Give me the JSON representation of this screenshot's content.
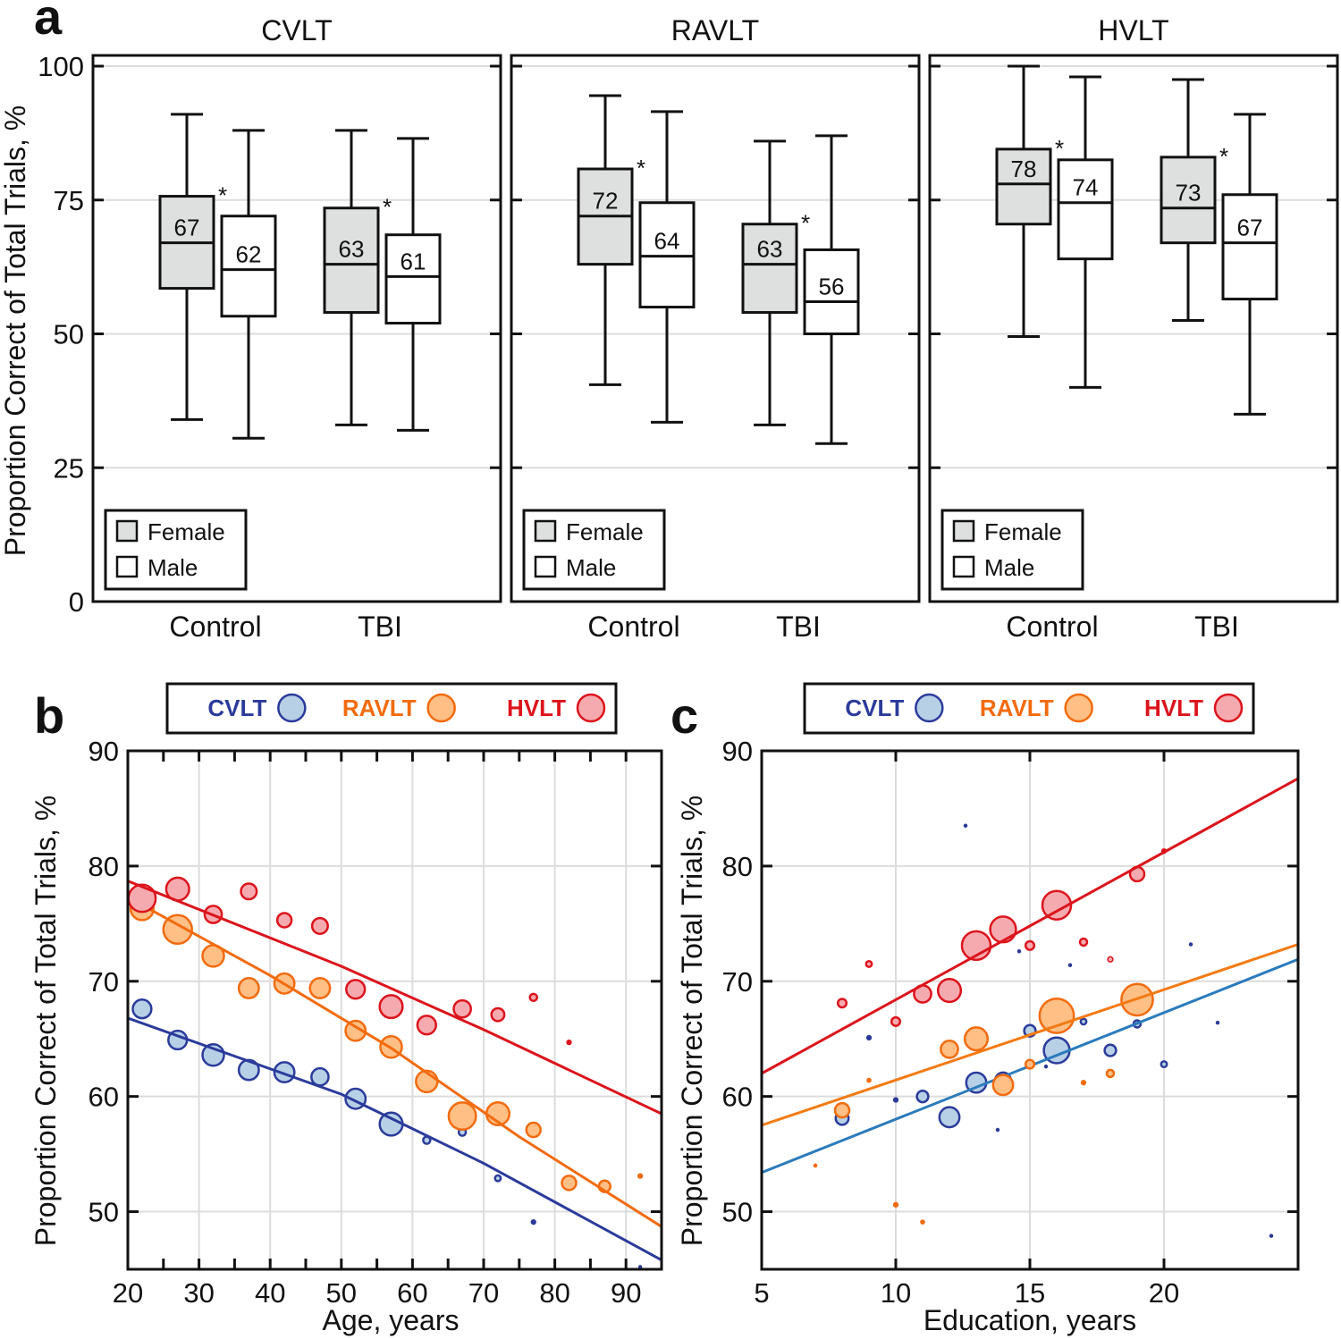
{
  "panel_letters": [
    "a",
    "b",
    "c"
  ],
  "colors": {
    "CVLT": {
      "edge": "#2b3b9b",
      "fill": "#b7d0e6",
      "line_b": "#2b3b9b",
      "line_c": "#2b7bbb"
    },
    "RAVLT": {
      "edge": "#f26b0f",
      "fill": "#ffbf85",
      "line_b": "#f26b0f",
      "line_c": "#f47a12"
    },
    "HVLT": {
      "edge": "#dc141c",
      "fill": "#f5aab0",
      "line_b": "#dc141c",
      "line_c": "#dc141c"
    },
    "female_fill": "#dedfdf",
    "grid": "#dcdcdc"
  },
  "chart_data": [
    {
      "type": "box",
      "panel": "a",
      "ylabel": "Proportion Correct of Total Trials, %",
      "ylim": [
        0,
        102
      ],
      "yticks": [
        "0",
        "25",
        "50",
        "75",
        "100"
      ],
      "groups": [
        "Control",
        "TBI"
      ],
      "legend": [
        "Female",
        "Male"
      ],
      "legend_placement": "bottom-left",
      "grid": true,
      "subplots": [
        {
          "title": "CVLT",
          "boxes": [
            {
              "group": "Control",
              "sex": "Female",
              "min": 34,
              "q1": 58.5,
              "median": 67,
              "q3": 75.7,
              "max": 91,
              "label": "67",
              "sig": "*"
            },
            {
              "group": "Control",
              "sex": "Male",
              "min": 30.5,
              "q1": 53.3,
              "median": 62,
              "q3": 72,
              "max": 88,
              "label": "62",
              "sig": ""
            },
            {
              "group": "TBI",
              "sex": "Female",
              "min": 33,
              "q1": 54,
              "median": 63,
              "q3": 73.5,
              "max": 88,
              "label": "63",
              "sig": "*"
            },
            {
              "group": "TBI",
              "sex": "Male",
              "min": 32,
              "q1": 52,
              "median": 60.7,
              "q3": 68.5,
              "max": 86.5,
              "label": "61",
              "sig": ""
            }
          ]
        },
        {
          "title": "RAVLT",
          "boxes": [
            {
              "group": "Control",
              "sex": "Female",
              "min": 40.5,
              "q1": 63,
              "median": 72,
              "q3": 80.8,
              "max": 94.5,
              "label": "72",
              "sig": "*"
            },
            {
              "group": "Control",
              "sex": "Male",
              "min": 33.5,
              "q1": 55,
              "median": 64.5,
              "q3": 74.5,
              "max": 91.5,
              "label": "64",
              "sig": ""
            },
            {
              "group": "TBI",
              "sex": "Female",
              "min": 33,
              "q1": 54,
              "median": 63,
              "q3": 70.5,
              "max": 86,
              "label": "63",
              "sig": "*"
            },
            {
              "group": "TBI",
              "sex": "Male",
              "min": 29.5,
              "q1": 50,
              "median": 56,
              "q3": 65.7,
              "max": 87,
              "label": "56",
              "sig": ""
            }
          ]
        },
        {
          "title": "HVLT",
          "boxes": [
            {
              "group": "Control",
              "sex": "Female",
              "min": 49.5,
              "q1": 70.5,
              "median": 78,
              "q3": 84.5,
              "max": 100,
              "label": "78",
              "sig": "*"
            },
            {
              "group": "Control",
              "sex": "Male",
              "min": 40,
              "q1": 64,
              "median": 74.5,
              "q3": 82.5,
              "max": 98,
              "label": "74",
              "sig": ""
            },
            {
              "group": "TBI",
              "sex": "Female",
              "min": 52.5,
              "q1": 67,
              "median": 73.5,
              "q3": 83,
              "max": 97.5,
              "label": "73",
              "sig": "*"
            },
            {
              "group": "TBI",
              "sex": "Male",
              "min": 35,
              "q1": 56.5,
              "median": 67,
              "q3": 76,
              "max": 91,
              "label": "67",
              "sig": ""
            }
          ]
        }
      ]
    },
    {
      "type": "scatter",
      "panel": "b",
      "xlabel": "Age, years",
      "ylabel": "Proportion Correct of Total Trials, %",
      "xlim": [
        20,
        95
      ],
      "ylim": [
        45,
        90
      ],
      "xticks": [
        20,
        30,
        40,
        50,
        60,
        70,
        80,
        90
      ],
      "yticks": [
        50,
        60,
        70,
        80,
        90
      ],
      "grid": true,
      "legend_placement": "top",
      "series": [
        {
          "name": "CVLT",
          "points": [
            [
              22,
              67.6,
              6.5
            ],
            [
              27,
              64.9,
              6.5
            ],
            [
              32,
              63.6,
              7.5
            ],
            [
              37,
              62.3,
              7
            ],
            [
              42,
              62.1,
              7
            ],
            [
              47,
              61.7,
              6
            ],
            [
              52,
              59.8,
              7
            ],
            [
              57,
              57.6,
              8
            ],
            [
              62,
              56.2,
              2.5
            ],
            [
              67,
              56.9,
              2.5
            ],
            [
              72,
              52.9,
              2
            ],
            [
              77,
              49.1,
              1.5
            ],
            [
              92,
              45.2,
              0.7
            ]
          ],
          "fit": [
            [
              20,
              66.8
            ],
            [
              50,
              60.2
            ],
            [
              70,
              54.2
            ],
            [
              95,
              45.8
            ]
          ]
        },
        {
          "name": "RAVLT",
          "points": [
            [
              22,
              76.3,
              8
            ],
            [
              27,
              74.5,
              10
            ],
            [
              32,
              72.2,
              7.5
            ],
            [
              37,
              69.4,
              7
            ],
            [
              42,
              69.8,
              7
            ],
            [
              47,
              69.4,
              7
            ],
            [
              52,
              65.7,
              7
            ],
            [
              57,
              64.3,
              7.5
            ],
            [
              62,
              61.3,
              7.5
            ],
            [
              67,
              58.3,
              9.5
            ],
            [
              72,
              58.5,
              8
            ],
            [
              77,
              57.1,
              5
            ],
            [
              82,
              52.5,
              5
            ],
            [
              87,
              52.2,
              4
            ],
            [
              92,
              53.1,
              1.5
            ]
          ],
          "fit": [
            [
              20,
              77.3
            ],
            [
              40,
              70.5
            ],
            [
              57,
              64.2
            ],
            [
              75,
              56.5
            ],
            [
              95,
              48.7
            ]
          ]
        },
        {
          "name": "HVLT",
          "points": [
            [
              22,
              77.2,
              9.5
            ],
            [
              27,
              78,
              8
            ],
            [
              32,
              75.8,
              6
            ],
            [
              37,
              77.8,
              5.5
            ],
            [
              42,
              75.3,
              5
            ],
            [
              47,
              74.8,
              5.5
            ],
            [
              52,
              69.3,
              6.5
            ],
            [
              57,
              67.8,
              8
            ],
            [
              62,
              66.2,
              6.5
            ],
            [
              67,
              67.6,
              6
            ],
            [
              72,
              67.1,
              4.5
            ],
            [
              77,
              68.6,
              2.5
            ],
            [
              82,
              64.7,
              1.5
            ]
          ],
          "fit": [
            [
              20,
              78.7
            ],
            [
              50,
              71.3
            ],
            [
              70,
              65.8
            ],
            [
              95,
              58.5
            ]
          ]
        }
      ]
    },
    {
      "type": "scatter",
      "panel": "c",
      "xlabel": "Education, years",
      "ylabel": "Proportion Correct of Total Trials, %",
      "xlim": [
        5,
        25
      ],
      "ylim": [
        45,
        90
      ],
      "xticks": [
        5,
        10,
        15,
        20
      ],
      "yticks": [
        50,
        60,
        70,
        80,
        90
      ],
      "grid": true,
      "legend_placement": "top",
      "series": [
        {
          "name": "CVLT",
          "points": [
            [
              8,
              58.1,
              4.5
            ],
            [
              9,
              65.1,
              1.5
            ],
            [
              10,
              59.7,
              1.5
            ],
            [
              11,
              60,
              4
            ],
            [
              12,
              58.2,
              7
            ],
            [
              12.6,
              83.5,
              0.7
            ],
            [
              13,
              61.2,
              7
            ],
            [
              13.8,
              57.1,
              0.7
            ],
            [
              14,
              61.4,
              5.5
            ],
            [
              14.6,
              72.6,
              0.7
            ],
            [
              15,
              65.7,
              4
            ],
            [
              15.6,
              62.6,
              0.7
            ],
            [
              16,
              64,
              9
            ],
            [
              16.5,
              71.4,
              0.7
            ],
            [
              17,
              66.5,
              2
            ],
            [
              18,
              64,
              4
            ],
            [
              19,
              66.3,
              2.5
            ],
            [
              20,
              62.8,
              2
            ],
            [
              21,
              73.2,
              0.7
            ],
            [
              22,
              66.4,
              0.7
            ],
            [
              24,
              47.9,
              0.7
            ]
          ],
          "fit": [
            [
              5,
              53.4
            ],
            [
              25,
              71.9
            ]
          ]
        },
        {
          "name": "RAVLT",
          "points": [
            [
              7,
              54,
              1
            ],
            [
              8,
              58.8,
              5
            ],
            [
              9,
              61.4,
              1.3
            ],
            [
              10,
              50.6,
              1.5
            ],
            [
              11,
              49.1,
              1.3
            ],
            [
              12,
              64.1,
              6
            ],
            [
              13,
              65,
              8
            ],
            [
              14,
              61,
              7
            ],
            [
              15,
              62.8,
              3
            ],
            [
              16,
              67,
              12
            ],
            [
              17,
              61.2,
              1.5
            ],
            [
              18,
              62,
              2.5
            ],
            [
              19,
              68.4,
              11
            ]
          ],
          "fit": [
            [
              5,
              57.5
            ],
            [
              25,
              73.2
            ]
          ]
        },
        {
          "name": "HVLT",
          "points": [
            [
              8,
              68.1,
              3
            ],
            [
              9,
              71.5,
              2
            ],
            [
              10,
              66.5,
              3
            ],
            [
              11,
              68.9,
              6
            ],
            [
              12,
              69.2,
              8
            ],
            [
              13,
              73.1,
              10
            ],
            [
              14,
              74.5,
              9
            ],
            [
              15,
              73.1,
              3
            ],
            [
              16,
              76.6,
              10
            ],
            [
              17,
              73.4,
              2.5
            ],
            [
              18,
              71.9,
              1.8
            ],
            [
              19,
              79.3,
              5
            ],
            [
              20,
              81.3,
              1.5
            ]
          ],
          "fit": [
            [
              5,
              62
            ],
            [
              25,
              87.6
            ]
          ]
        }
      ]
    }
  ]
}
